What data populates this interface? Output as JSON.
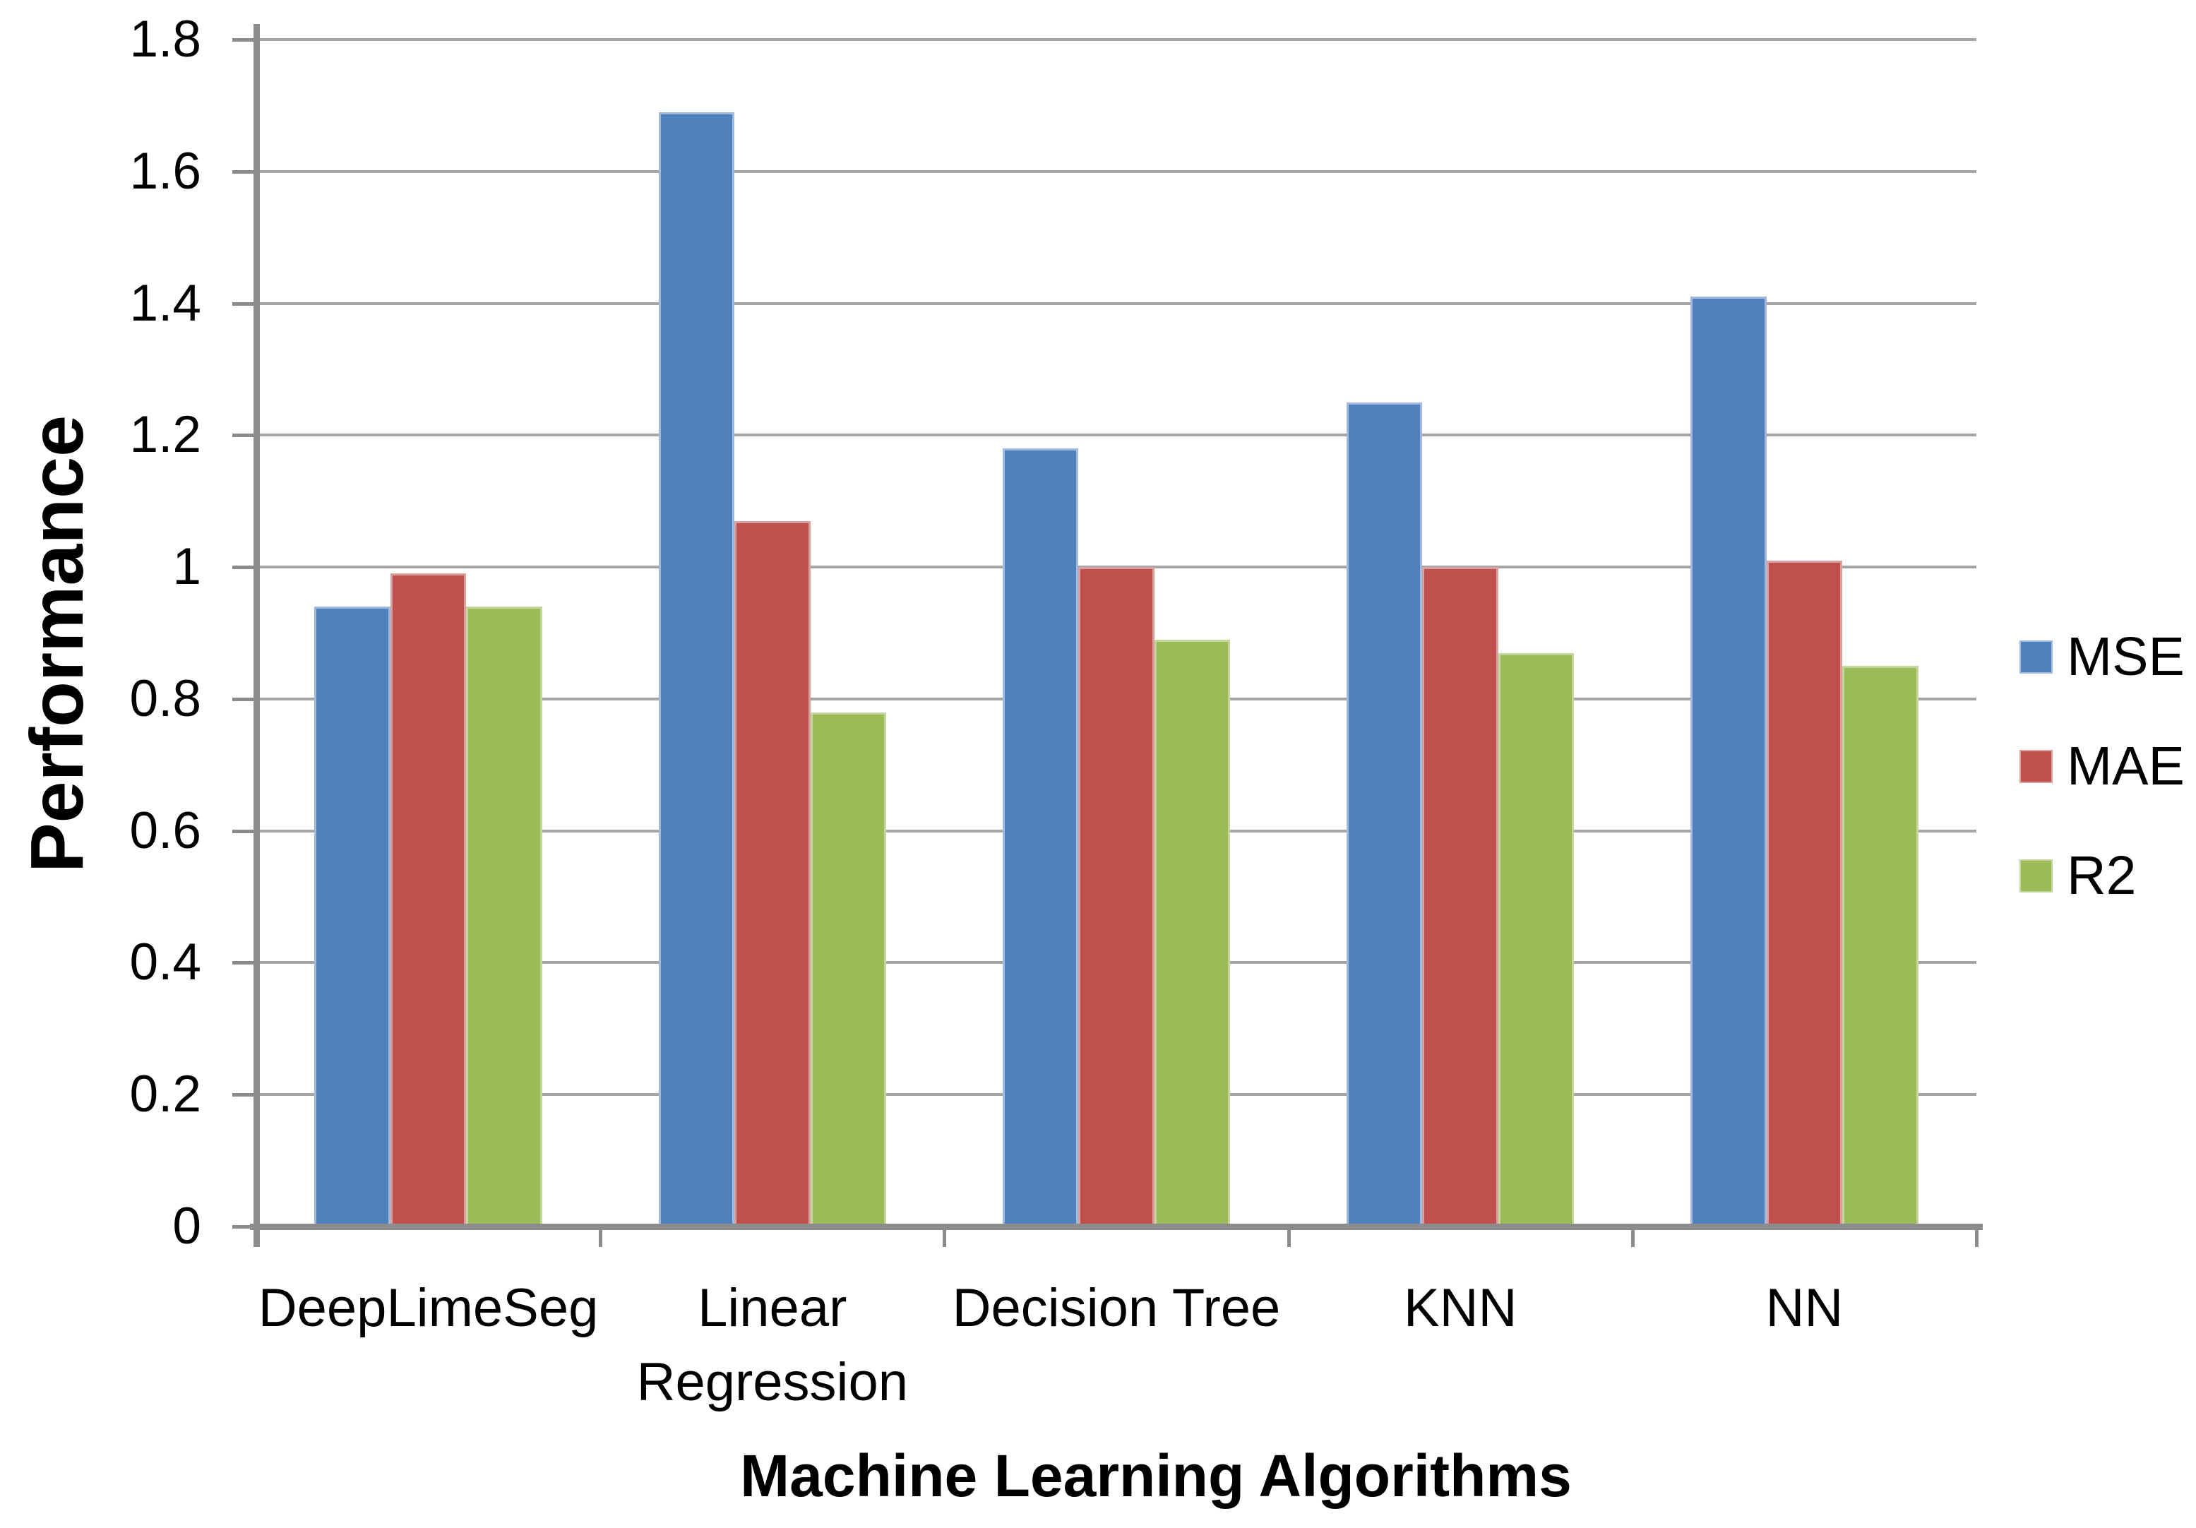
{
  "chart_data": {
    "type": "bar",
    "title": "",
    "categories": [
      "DeepLimeSeg",
      "Linear\nRegression",
      "Decision Tree",
      "KNN",
      "NN"
    ],
    "series": [
      {
        "name": "MSE",
        "color": "#4F81BD",
        "edge": "#A0B9DC",
        "values": [
          0.94,
          1.69,
          1.18,
          1.25,
          1.41
        ]
      },
      {
        "name": "MAE",
        "color": "#C0504D",
        "edge": "#D9A09E",
        "values": [
          0.99,
          1.07,
          1.0,
          1.0,
          1.01
        ]
      },
      {
        "name": "R2",
        "color": "#9BBB59",
        "edge": "#C3D69B",
        "values": [
          0.94,
          0.78,
          0.89,
          0.87,
          0.85
        ]
      }
    ],
    "xlabel": "Machine Learning Algorithms",
    "ylabel": "Performance",
    "ylim": [
      0,
      1.8
    ],
    "ytick_step": 0.2,
    "ytick_labels": [
      "0",
      "0.2",
      "0.4",
      "0.6",
      "0.8",
      "1",
      "1.2",
      "1.4",
      "1.6",
      "1.8"
    ],
    "grid": true,
    "legend_position": "right",
    "colors": {
      "gridline": "#A6A6A6",
      "axis": "#8C8C8C",
      "text": "#000000",
      "background": "#FFFFFF"
    }
  }
}
